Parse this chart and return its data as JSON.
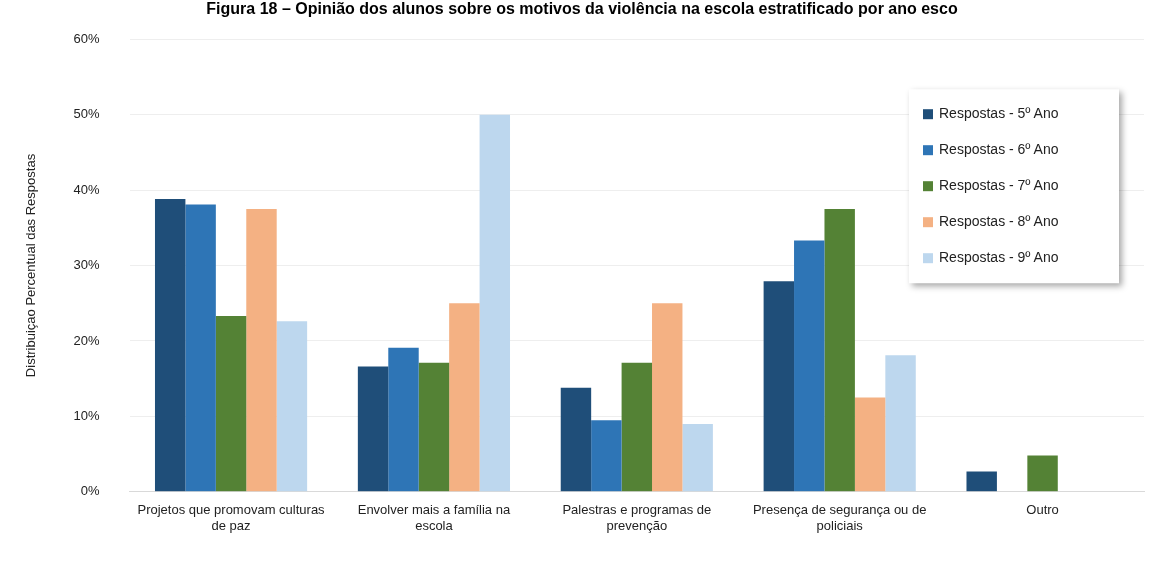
{
  "chart_data": {
    "type": "bar",
    "title": "Figura 18 – Opinião dos alunos sobre os motivos da violência na escola estratificado por ano esco",
    "ylabel": "Distribuiçao Percentual das Respostas",
    "categories": [
      "Projetos que promovam culturas de paz",
      "Envolver mais a família na escola",
      "Palestras e programas de prevenção",
      "Presença de segurança ou de policiais",
      "Outro"
    ],
    "series": [
      {
        "name": "Respostas - 5º Ano",
        "color": "#1f4e79",
        "values": [
          38.8,
          16.6,
          13.8,
          27.9,
          2.7
        ]
      },
      {
        "name": "Respostas - 6º Ano",
        "color": "#2e75b6",
        "values": [
          38.1,
          19.1,
          9.5,
          33.3,
          0
        ]
      },
      {
        "name": "Respostas - 7º Ano",
        "color": "#548235",
        "values": [
          23.3,
          17.1,
          17.1,
          37.5,
          4.8
        ]
      },
      {
        "name": "Respostas - 8º Ano",
        "color": "#f4b183",
        "values": [
          37.5,
          25,
          25,
          12.5,
          0
        ]
      },
      {
        "name": "Respostas - 9º Ano",
        "color": "#bdd7ee",
        "values": [
          22.6,
          50,
          9.0,
          18.1,
          0
        ]
      }
    ],
    "ylim": [
      0,
      60
    ],
    "yticks": [
      {
        "value": 0,
        "label": "0%"
      },
      {
        "value": 10,
        "label": "10%"
      },
      {
        "value": 20,
        "label": "20%"
      },
      {
        "value": 30,
        "label": "30%"
      },
      {
        "value": 40,
        "label": "40%"
      },
      {
        "value": 50,
        "label": "50%"
      },
      {
        "value": 60,
        "label": "60%"
      }
    ],
    "grid": "y",
    "legend": "top right"
  }
}
